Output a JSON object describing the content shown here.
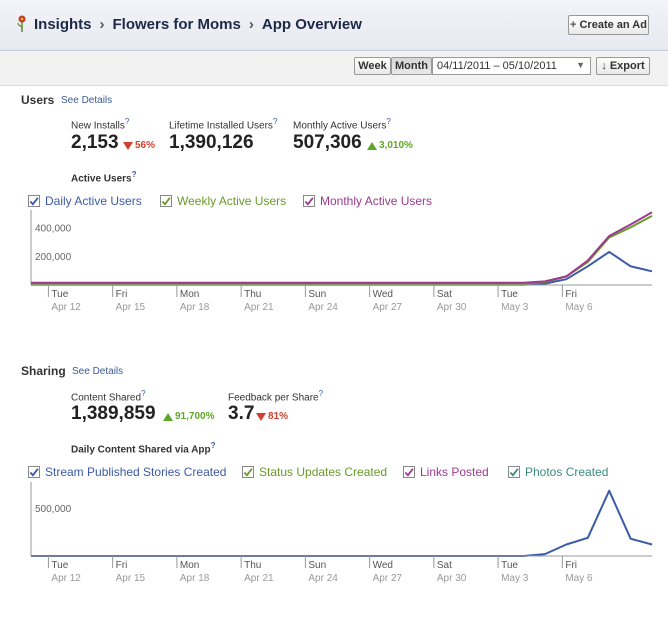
{
  "header": {
    "breadcrumb": [
      "Insights",
      "Flowers for Moms",
      "App Overview"
    ],
    "create_ad_label": "Create an Ad",
    "icon": "flower-icon"
  },
  "toolbar": {
    "week_label": "Week",
    "month_label": "Month",
    "selected_range": "Month",
    "date_range": "04/11/2011 – 05/10/2011",
    "export_label": "Export"
  },
  "users": {
    "title": "Users",
    "see_details": "See Details",
    "metrics": [
      {
        "label": "New Installs",
        "value": "2,153",
        "change": "56%",
        "direction": "down"
      },
      {
        "label": "Lifetime Installed Users",
        "value": "1,390,126",
        "change": "",
        "direction": ""
      },
      {
        "label": "Monthly Active Users",
        "value": "507,306",
        "change": "3,010%",
        "direction": "up"
      }
    ],
    "chart_title": "Active Users",
    "legend": [
      {
        "label": "Daily Active Users",
        "color": "#3b5ba8",
        "checked": true
      },
      {
        "label": "Weekly Active Users",
        "color": "#6a9a2a",
        "checked": true
      },
      {
        "label": "Monthly Active Users",
        "color": "#9b3a8e",
        "checked": true
      }
    ]
  },
  "sharing": {
    "title": "Sharing",
    "see_details": "See Details",
    "metrics": [
      {
        "label": "Content Shared",
        "value": "1,389,859",
        "change": "91,700%",
        "direction": "up"
      },
      {
        "label": "Feedback per Share",
        "value": "3.7",
        "change": "81%",
        "direction": "down"
      }
    ],
    "chart_title": "Daily Content Shared via App",
    "legend": [
      {
        "label": "Stream Published Stories Created",
        "color": "#3b5ba8",
        "checked": true
      },
      {
        "label": "Status Updates Created",
        "color": "#6a9a2a",
        "checked": true
      },
      {
        "label": "Links Posted",
        "color": "#9b3a8e",
        "checked": true
      },
      {
        "label": "Photos Created",
        "color": "#3a8e7a",
        "checked": true
      }
    ]
  },
  "chart_data": [
    {
      "type": "line",
      "title": "Active Users",
      "x_ticks": [
        {
          "day": "Tue",
          "date": "Apr 12"
        },
        {
          "day": "Fri",
          "date": "Apr 15"
        },
        {
          "day": "Mon",
          "date": "Apr 18"
        },
        {
          "day": "Thu",
          "date": "Apr 21"
        },
        {
          "day": "Sun",
          "date": "Apr 24"
        },
        {
          "day": "Wed",
          "date": "Apr 27"
        },
        {
          "day": "Sat",
          "date": "Apr 30"
        },
        {
          "day": "Tue",
          "date": "May 3"
        },
        {
          "day": "Fri",
          "date": "May 6"
        }
      ],
      "y_ticks": [
        "200,000",
        "400,000"
      ],
      "ylim": [
        0,
        500000
      ],
      "x_range": [
        "04/11/2011",
        "05/10/2011"
      ],
      "grid": false,
      "series": [
        {
          "name": "Daily Active Users",
          "color": "#3b5ba8",
          "values": [
            2000,
            2000,
            2000,
            2000,
            2000,
            2000,
            2000,
            2000,
            2000,
            2000,
            2000,
            2000,
            2000,
            2000,
            2000,
            2000,
            2000,
            2000,
            2000,
            2000,
            2000,
            2000,
            2000,
            2000,
            10000,
            40000,
            130000,
            230000,
            130000,
            95000
          ]
        },
        {
          "name": "Weekly Active Users",
          "color": "#6a9a2a",
          "values": [
            9000,
            9000,
            9000,
            9000,
            9000,
            9000,
            9000,
            9000,
            9000,
            9000,
            9000,
            9000,
            9000,
            9000,
            9000,
            9000,
            9000,
            9000,
            9000,
            9000,
            9000,
            9000,
            9000,
            9000,
            20000,
            60000,
            160000,
            330000,
            400000,
            480000
          ]
        },
        {
          "name": "Monthly Active Users",
          "color": "#9b3a8e",
          "values": [
            15000,
            15000,
            15000,
            15000,
            15000,
            15000,
            15000,
            15000,
            15000,
            15000,
            15000,
            15000,
            15000,
            15000,
            15000,
            15000,
            15000,
            15000,
            15000,
            15000,
            15000,
            15000,
            15000,
            15000,
            25000,
            60000,
            170000,
            340000,
            420000,
            505000
          ]
        }
      ]
    },
    {
      "type": "line",
      "title": "Daily Content Shared via App",
      "x_ticks": [
        {
          "day": "Tue",
          "date": "Apr 12"
        },
        {
          "day": "Fri",
          "date": "Apr 15"
        },
        {
          "day": "Mon",
          "date": "Apr 18"
        },
        {
          "day": "Thu",
          "date": "Apr 21"
        },
        {
          "day": "Sun",
          "date": "Apr 24"
        },
        {
          "day": "Wed",
          "date": "Apr 27"
        },
        {
          "day": "Sat",
          "date": "Apr 30"
        },
        {
          "day": "Tue",
          "date": "May 3"
        },
        {
          "day": "Fri",
          "date": "May 6"
        }
      ],
      "y_ticks": [
        "500,000"
      ],
      "ylim": [
        0,
        750000
      ],
      "x_range": [
        "04/11/2011",
        "05/10/2011"
      ],
      "grid": false,
      "series": [
        {
          "name": "Stream Published Stories Created",
          "color": "#3b5ba8",
          "values": [
            0,
            0,
            0,
            0,
            0,
            0,
            0,
            0,
            0,
            0,
            0,
            0,
            0,
            0,
            0,
            0,
            0,
            0,
            0,
            0,
            0,
            0,
            0,
            0,
            20000,
            120000,
            190000,
            680000,
            180000,
            120000
          ]
        }
      ]
    }
  ]
}
